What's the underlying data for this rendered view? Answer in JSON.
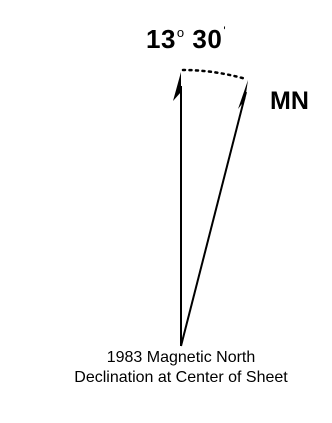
{
  "declination": {
    "degrees": "13",
    "degree_symbol": "o",
    "minutes": "30",
    "minute_symbol": "'"
  },
  "magnetic_north_label": "MN",
  "caption": {
    "line1": "1983 Magnetic North",
    "line2": "Declination at Center of Sheet"
  },
  "colors": {
    "ink": "#000000",
    "background": "#ffffff"
  }
}
